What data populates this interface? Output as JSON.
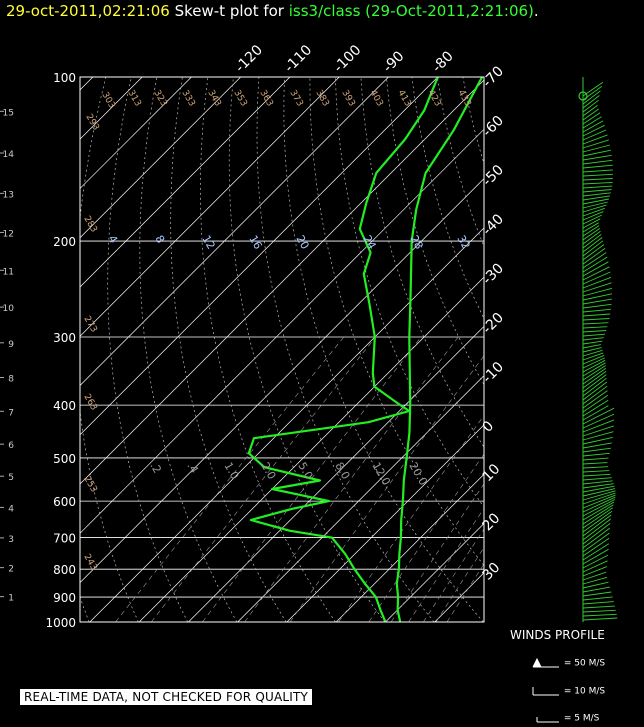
{
  "header": {
    "timestamp": "29-oct-2011,02:21:06",
    "title_text": "Skew-t plot for",
    "source": "iss3/class (29-Oct-2011,2:21:06)",
    "period": "."
  },
  "disclaimer": "REAL-TIME DATA, NOT CHECKED FOR QUALITY",
  "winds": {
    "title": "WINDS PROFILE",
    "key": [
      {
        "label": "= 50 M/S",
        "icon": "pennant-barb-icon"
      },
      {
        "label": "= 10 M/S",
        "icon": "full-barb-icon"
      },
      {
        "label": "= 5 M/S",
        "icon": "half-barb-icon"
      }
    ]
  },
  "colors": {
    "temperature": "#22ee22",
    "dewpoint": "#22ee22",
    "isotherm_label": "#ffffff",
    "theta_label": "#d2a77a",
    "mixing_label": "#a8c8ff",
    "header_time": "#ffff33",
    "header_source": "#33ff33"
  },
  "chart_data": {
    "type": "line",
    "title": "Skew-t plot",
    "y_axis_pressure_ticks": [
      100,
      200,
      300,
      400,
      500,
      600,
      700,
      800,
      900,
      1000
    ],
    "y_axis_height_ticks_km": [
      1,
      2,
      3,
      4,
      5,
      6,
      7,
      8,
      9,
      10,
      11,
      12,
      13,
      14,
      15,
      16
    ],
    "isotherm_labels": [
      "-120",
      "-110",
      "-100",
      "-90",
      "-80",
      "-70",
      "-60",
      "-50",
      "-40",
      "-30",
      "-20",
      "-10",
      "0",
      "10",
      "20",
      "30",
      "40"
    ],
    "dry_adiabat_labels": [
      "293",
      "303",
      "313",
      "323",
      "333",
      "343",
      "353",
      "363",
      "373",
      "383",
      "393",
      "403",
      "413",
      "423",
      "433",
      "283",
      "273",
      "263",
      "253",
      "243"
    ],
    "mixing_ratio_labels": [
      "4",
      "8",
      "12",
      "16",
      "20",
      "24",
      "28",
      "32"
    ],
    "lower_mixing_labels": [
      ".2",
      ".4",
      "1.0",
      "2.0",
      "5.0",
      "8.0",
      "12.0",
      "20.0"
    ],
    "pressure_range_hpa": [
      1000,
      100
    ],
    "temperature_range_at_1000hpa_c": [
      -42,
      40
    ],
    "series": [
      {
        "name": "",
        "points_p_t": [
          [
            1000,
            23.0
          ],
          [
            950,
            20.0
          ],
          [
            900,
            17.5
          ],
          [
            850,
            14.5
          ],
          [
            800,
            12.0
          ],
          [
            750,
            9.0
          ],
          [
            700,
            6.0
          ],
          [
            650,
            2.5
          ],
          [
            600,
            -1.0
          ],
          [
            550,
            -5.0
          ],
          [
            500,
            -9.0
          ],
          [
            450,
            -13.5
          ],
          [
            400,
            -19.0
          ],
          [
            350,
            -25.5
          ],
          [
            300,
            -33.0
          ],
          [
            250,
            -41.5
          ],
          [
            200,
            -52.0
          ],
          [
            175,
            -57.5
          ],
          [
            150,
            -63.0
          ],
          [
            125,
            -66.0
          ],
          [
            100,
            -71.0
          ]
        ]
      },
      {
        "name": "",
        "points_p_t": [
          [
            1000,
            20.0
          ],
          [
            950,
            16.5
          ],
          [
            900,
            13.0
          ],
          [
            850,
            8.0
          ],
          [
            800,
            3.0
          ],
          [
            750,
            -2.0
          ],
          [
            700,
            -8.0
          ],
          [
            680,
            -18.0
          ],
          [
            650,
            -28.0
          ],
          [
            620,
            -22.0
          ],
          [
            600,
            -16.0
          ],
          [
            570,
            -30.0
          ],
          [
            550,
            -22.0
          ],
          [
            520,
            -36.0
          ],
          [
            490,
            -42.0
          ],
          [
            460,
            -44.0
          ],
          [
            430,
            -24.0
          ],
          [
            410,
            -18.0
          ],
          [
            400,
            -21.0
          ],
          [
            370,
            -30.0
          ],
          [
            350,
            -33.0
          ],
          [
            300,
            -40.0
          ],
          [
            260,
            -48.0
          ],
          [
            230,
            -55.0
          ],
          [
            210,
            -58.0
          ],
          [
            190,
            -65.0
          ],
          [
            170,
            -69.0
          ],
          [
            150,
            -73.0
          ],
          [
            130,
            -74.0
          ],
          [
            115,
            -76.0
          ],
          [
            100,
            -80.0
          ]
        ]
      }
    ]
  }
}
